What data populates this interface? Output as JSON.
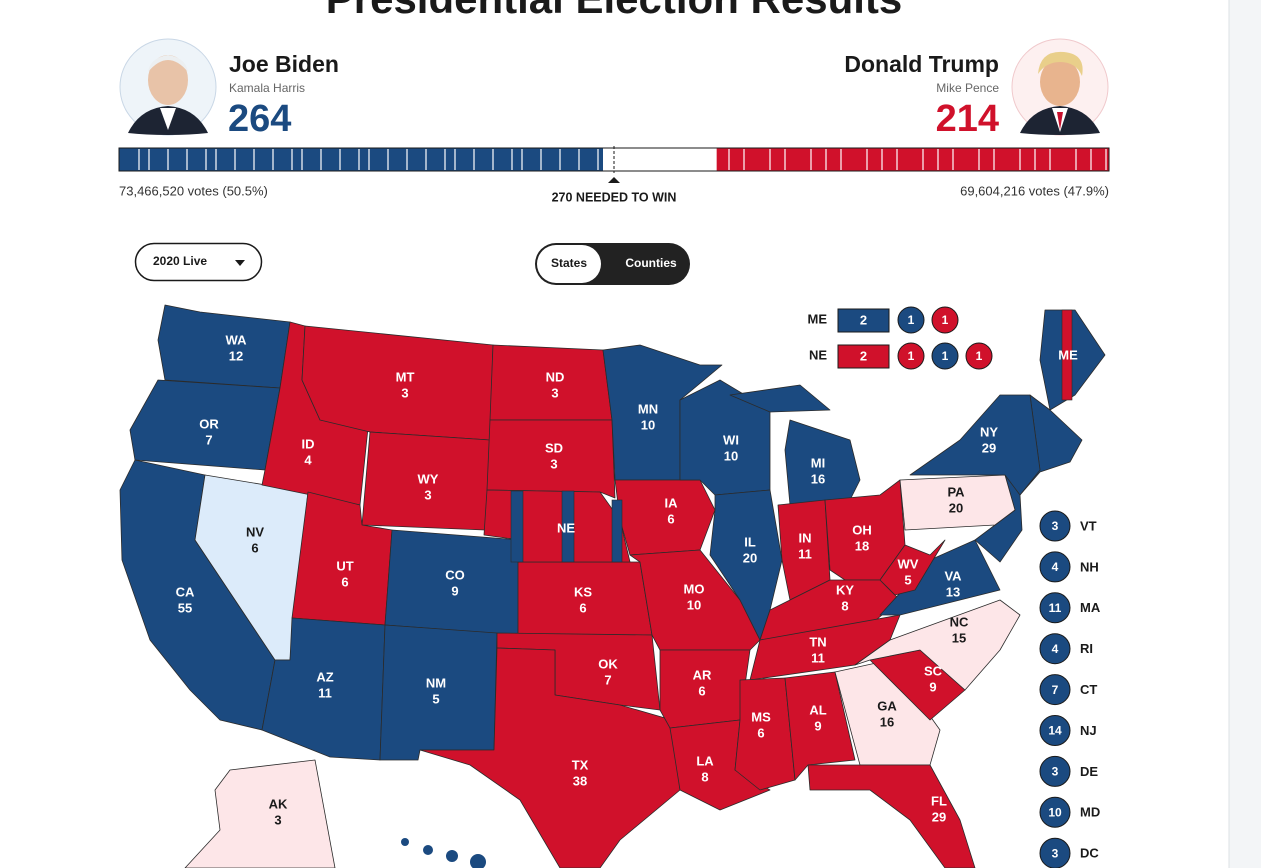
{
  "header": {
    "title": "Presidential Election Results"
  },
  "candidates": [
    {
      "name": "Joe Biden",
      "running_mate": "Kamala Harris",
      "electoral_votes": 264,
      "votes_label": "73,466,520 votes (50.5%)",
      "color": "#1b4a80"
    },
    {
      "name": "Donald Trump",
      "running_mate": "Mike Pence",
      "electoral_votes": 214,
      "votes_label": "69,604,216 votes (47.9%)",
      "color": "#d0112b"
    }
  ],
  "threshold": {
    "value": 270,
    "label": "270 NEEDED TO WIN"
  },
  "controls": {
    "year_select": "2020 Live",
    "toggle": [
      "States",
      "Counties"
    ]
  },
  "splits": [
    {
      "state": "ME",
      "items": [
        {
          "votes": 2,
          "color": "#1b4a80"
        },
        {
          "votes": 1,
          "color": "#1b4a80"
        },
        {
          "votes": 1,
          "color": "#d0112b"
        }
      ]
    },
    {
      "state": "NE",
      "items": [
        {
          "votes": 2,
          "color": "#d0112b"
        },
        {
          "votes": 1,
          "color": "#d0112b"
        },
        {
          "votes": 1,
          "color": "#1b4a80"
        },
        {
          "votes": 1,
          "color": "#d0112b"
        }
      ]
    }
  ],
  "map": {
    "states": [
      {
        "abbr": "WA",
        "votes": 12,
        "color": "#1b4a80"
      },
      {
        "abbr": "OR",
        "votes": 7,
        "color": "#1b4a80"
      },
      {
        "abbr": "CA",
        "votes": 55,
        "color": "#1b4a80"
      },
      {
        "abbr": "NV",
        "votes": 6,
        "color": "#dcebfa"
      },
      {
        "abbr": "ID",
        "votes": 4,
        "color": "#d0112b"
      },
      {
        "abbr": "MT",
        "votes": 3,
        "color": "#d0112b"
      },
      {
        "abbr": "WY",
        "votes": 3,
        "color": "#d0112b"
      },
      {
        "abbr": "UT",
        "votes": 6,
        "color": "#d0112b"
      },
      {
        "abbr": "AZ",
        "votes": 11,
        "color": "#1b4a80"
      },
      {
        "abbr": "CO",
        "votes": 9,
        "color": "#1b4a80"
      },
      {
        "abbr": "NM",
        "votes": 5,
        "color": "#1b4a80"
      },
      {
        "abbr": "ND",
        "votes": 3,
        "color": "#d0112b"
      },
      {
        "abbr": "SD",
        "votes": 3,
        "color": "#d0112b"
      },
      {
        "abbr": "NE",
        "color": "#d0112b"
      },
      {
        "abbr": "KS",
        "votes": 6,
        "color": "#d0112b"
      },
      {
        "abbr": "OK",
        "votes": 7,
        "color": "#d0112b"
      },
      {
        "abbr": "TX",
        "votes": 38,
        "color": "#d0112b"
      },
      {
        "abbr": "MN",
        "votes": 10,
        "color": "#1b4a80"
      },
      {
        "abbr": "IA",
        "votes": 6,
        "color": "#d0112b"
      },
      {
        "abbr": "MO",
        "votes": 10,
        "color": "#d0112b"
      },
      {
        "abbr": "AR",
        "votes": 6,
        "color": "#d0112b"
      },
      {
        "abbr": "LA",
        "votes": 8,
        "color": "#d0112b"
      },
      {
        "abbr": "WI",
        "votes": 10,
        "color": "#1b4a80"
      },
      {
        "abbr": "IL",
        "votes": 20,
        "color": "#1b4a80"
      },
      {
        "abbr": "MI",
        "votes": 16,
        "color": "#1b4a80"
      },
      {
        "abbr": "IN",
        "votes": 11,
        "color": "#d0112b"
      },
      {
        "abbr": "OH",
        "votes": 18,
        "color": "#d0112b"
      },
      {
        "abbr": "KY",
        "votes": 8,
        "color": "#d0112b"
      },
      {
        "abbr": "TN",
        "votes": 11,
        "color": "#d0112b"
      },
      {
        "abbr": "MS",
        "votes": 6,
        "color": "#d0112b"
      },
      {
        "abbr": "AL",
        "votes": 9,
        "color": "#d0112b"
      },
      {
        "abbr": "GA",
        "votes": 16,
        "color": "#fde6e8"
      },
      {
        "abbr": "FL",
        "votes": 29,
        "color": "#d0112b"
      },
      {
        "abbr": "SC",
        "votes": 9,
        "color": "#d0112b"
      },
      {
        "abbr": "NC",
        "votes": 15,
        "color": "#fde6e8"
      },
      {
        "abbr": "VA",
        "votes": 13,
        "color": "#1b4a80"
      },
      {
        "abbr": "WV",
        "votes": 5,
        "color": "#d0112b"
      },
      {
        "abbr": "PA",
        "votes": 20,
        "color": "#fde6e8"
      },
      {
        "abbr": "NY",
        "votes": 29,
        "color": "#1b4a80"
      },
      {
        "abbr": "ME",
        "color": "#1b4a80"
      },
      {
        "abbr": "AK",
        "votes": 3,
        "color": "#fde6e8"
      }
    ]
  },
  "small_states": [
    {
      "abbr": "VT",
      "votes": 3,
      "color": "#1b4a80"
    },
    {
      "abbr": "NH",
      "votes": 4,
      "color": "#1b4a80"
    },
    {
      "abbr": "MA",
      "votes": 11,
      "color": "#1b4a80"
    },
    {
      "abbr": "RI",
      "votes": 4,
      "color": "#1b4a80"
    },
    {
      "abbr": "CT",
      "votes": 7,
      "color": "#1b4a80"
    },
    {
      "abbr": "NJ",
      "votes": 14,
      "color": "#1b4a80"
    },
    {
      "abbr": "DE",
      "votes": 3,
      "color": "#1b4a80"
    },
    {
      "abbr": "MD",
      "votes": 10,
      "color": "#1b4a80"
    },
    {
      "abbr": "DC",
      "votes": 3,
      "color": "#1b4a80"
    }
  ]
}
